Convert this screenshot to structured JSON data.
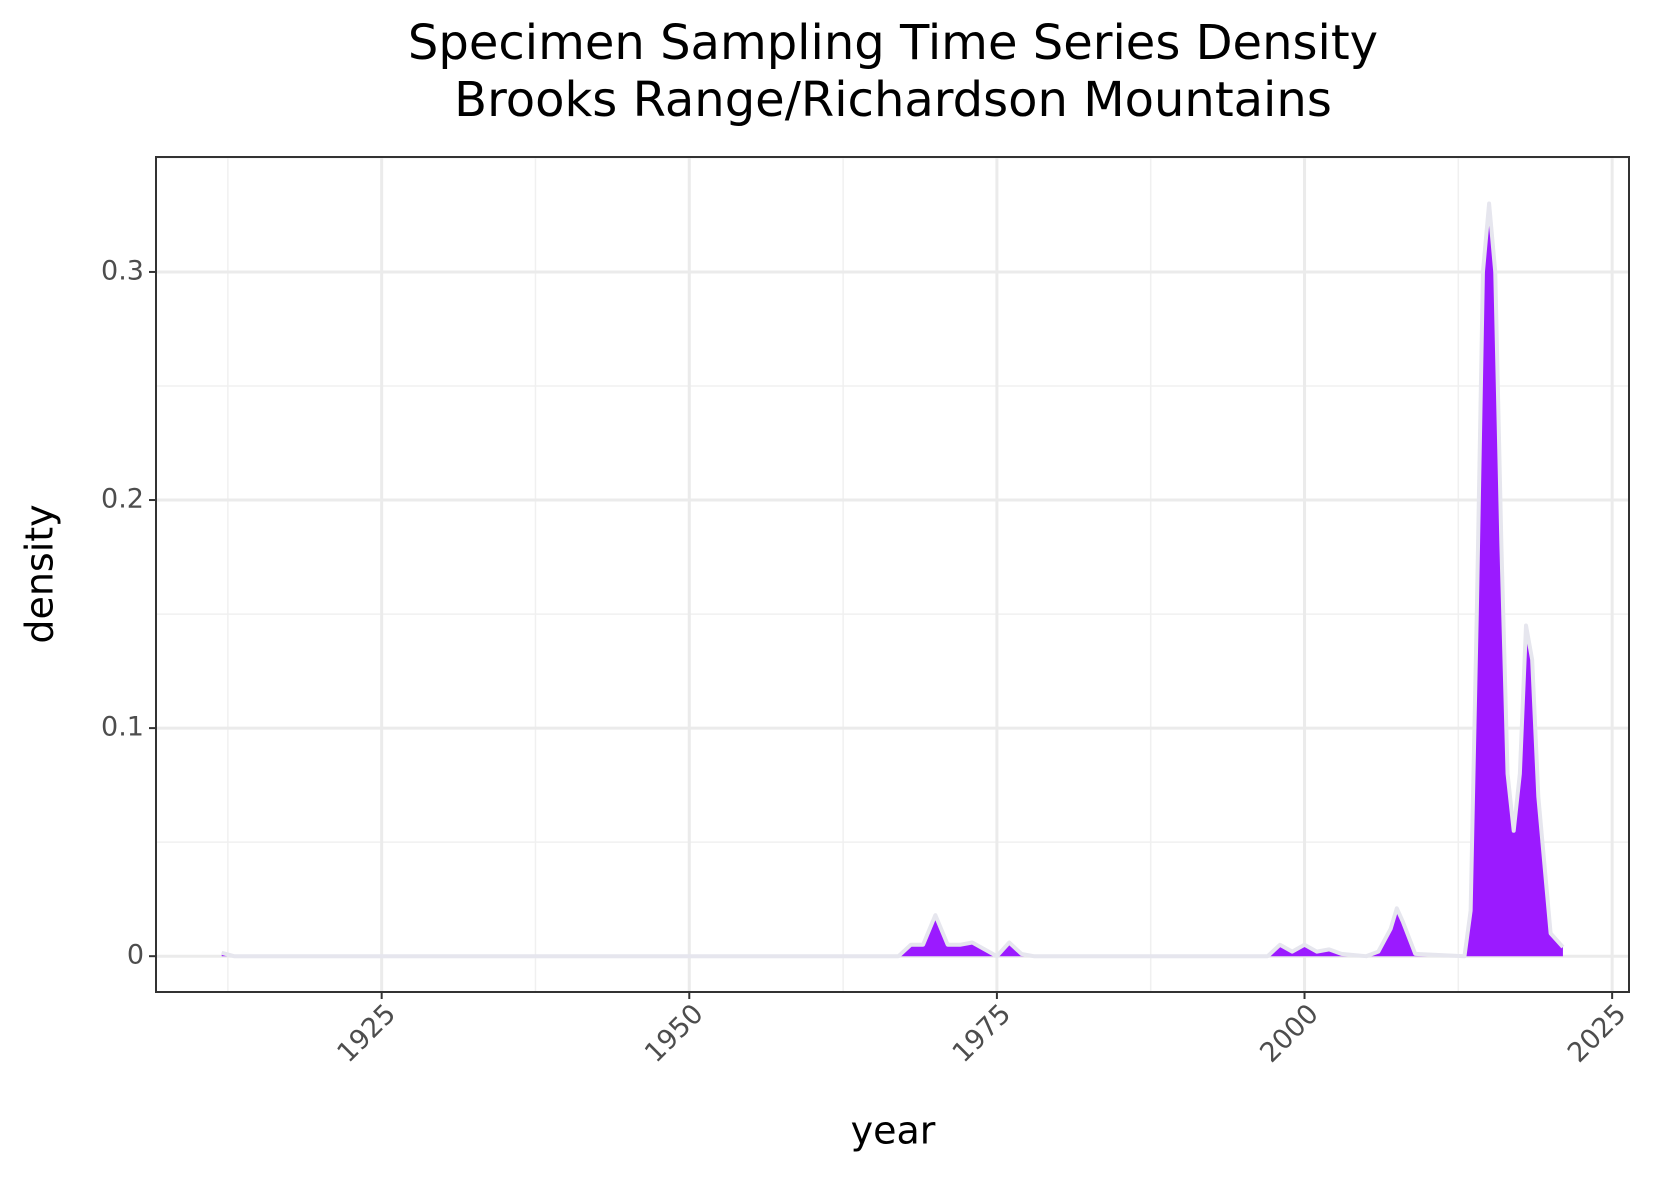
{
  "chart_data": {
    "type": "area",
    "title": "Specimen Sampling Time Series Density",
    "subtitle": "Brooks Range/Richardson Mountains",
    "x_label": "year",
    "y_label": "density",
    "x": [
      1912,
      1913,
      1967,
      1968,
      1969,
      1970,
      1971,
      1972,
      1973,
      1974,
      1975,
      1976,
      1977,
      1978,
      1997,
      1998,
      1999,
      2000,
      2001,
      2002,
      2003,
      2005,
      2006,
      2007,
      2007.5,
      2008,
      2009,
      2013,
      2013.5,
      2014,
      2014.5,
      2015,
      2015.5,
      2016,
      2016.5,
      2017,
      2017.5,
      2018,
      2018.5,
      2019,
      2020,
      2021
    ],
    "values": [
      0.0015,
      0,
      0,
      0.005,
      0.005,
      0.018,
      0.005,
      0.005,
      0.006,
      0.003,
      0,
      0.006,
      0.001,
      0,
      0,
      0.005,
      0.002,
      0.005,
      0.002,
      0.003,
      0.001,
      0,
      0.002,
      0.012,
      0.021,
      0.015,
      0.001,
      0,
      0.02,
      0.15,
      0.3,
      0.33,
      0.3,
      0.18,
      0.08,
      0.055,
      0.08,
      0.145,
      0.13,
      0.07,
      0.01,
      0.004
    ],
    "color": "#9b1aff",
    "outline_color": "#e6e6ee",
    "xlim": [
      1906.66,
      2026.37
    ],
    "xticks": [
      1925,
      1950,
      1975,
      2000,
      2025
    ],
    "ylim": [
      -0.0157,
      0.3504
    ],
    "yticks": [
      0.0,
      0.1,
      0.2,
      0.3
    ],
    "grid": true
  }
}
